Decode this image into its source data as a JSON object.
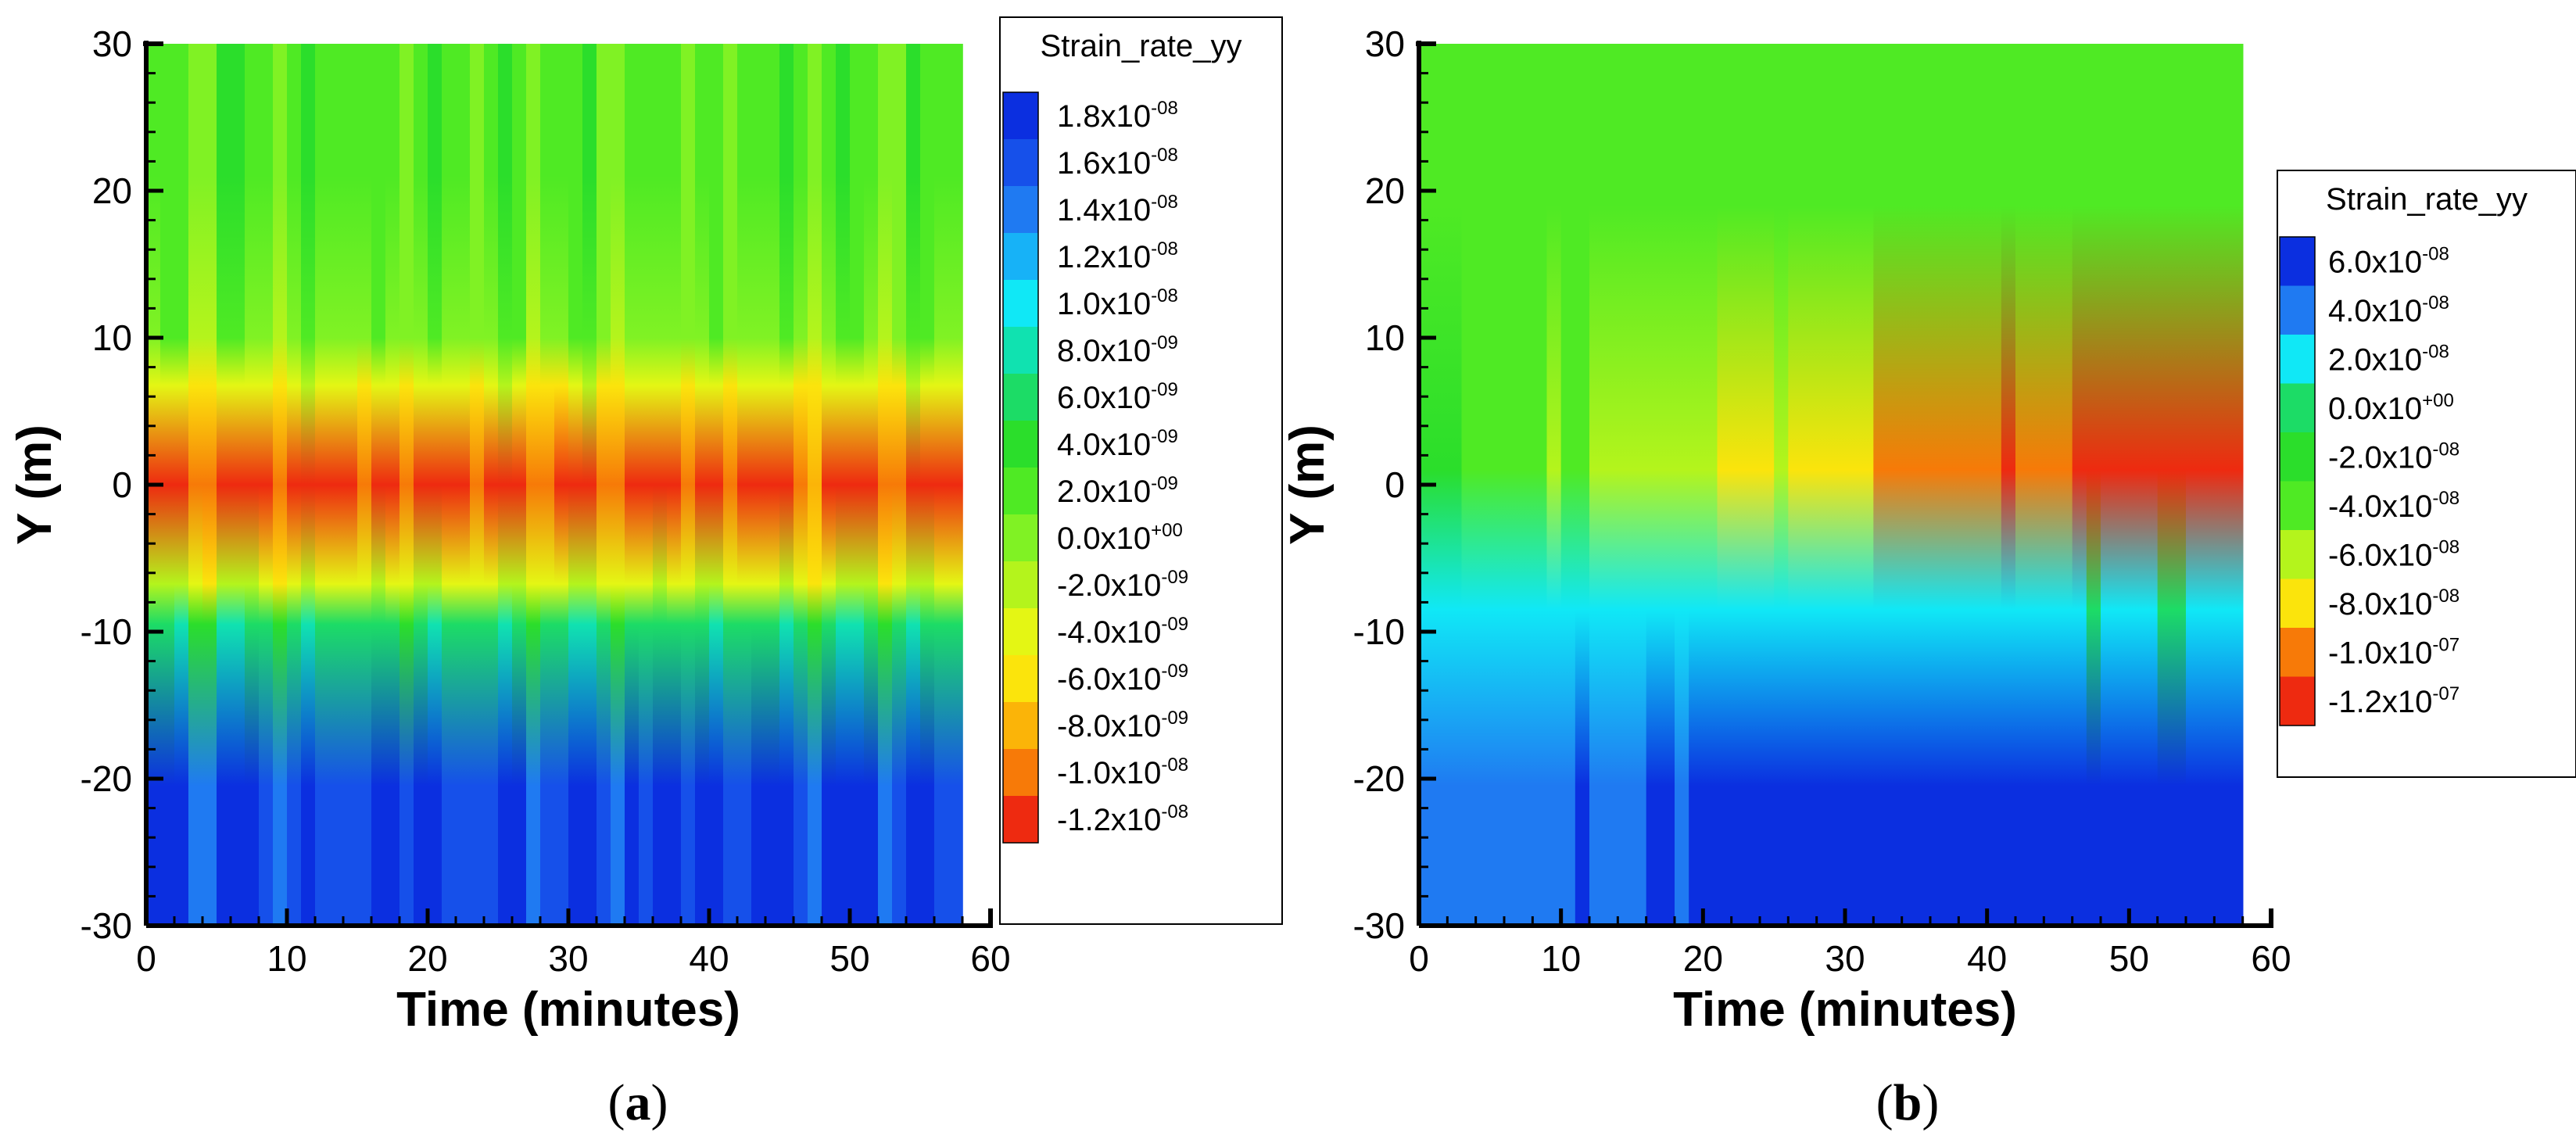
{
  "chart_data": [
    {
      "type": "heatmap",
      "panel_label": "a",
      "title": "",
      "xlabel": "Time (minutes)",
      "ylabel": "Y (m)",
      "xlim": [
        0,
        60
      ],
      "ylim": [
        -30,
        30
      ],
      "data_xmax": 58,
      "x_ticks": [
        "0",
        "10",
        "20",
        "30",
        "40",
        "50",
        "60"
      ],
      "y_ticks": [
        "30",
        "20",
        "10",
        "0",
        "-10",
        "-20",
        "-30"
      ],
      "colorbar_title": "Strain_rate_yy",
      "colorbar_levels": [
        {
          "mantissa": "1.8",
          "exp": "-08",
          "color": "#0b2fe0"
        },
        {
          "mantissa": "1.6",
          "exp": "-08",
          "color": "#1650ea"
        },
        {
          "mantissa": "1.4",
          "exp": "-08",
          "color": "#1f7af2"
        },
        {
          "mantissa": "1.2",
          "exp": "-08",
          "color": "#17b2f7"
        },
        {
          "mantissa": "1.0",
          "exp": "-08",
          "color": "#10e8f6"
        },
        {
          "mantissa": "8.0",
          "exp": "-09",
          "color": "#10e2b0"
        },
        {
          "mantissa": "6.0",
          "exp": "-09",
          "color": "#1cdc66"
        },
        {
          "mantissa": "4.0",
          "exp": "-09",
          "color": "#2bde2b"
        },
        {
          "mantissa": "2.0",
          "exp": "-09",
          "color": "#4fea24"
        },
        {
          "mantissa": "0.0",
          "exp": "+00",
          "color": "#80f224"
        },
        {
          "mantissa": "-2.0",
          "exp": "-09",
          "color": "#b4f41c"
        },
        {
          "mantissa": "-4.0",
          "exp": "-09",
          "color": "#e4f614"
        },
        {
          "mantissa": "-6.0",
          "exp": "-09",
          "color": "#fbe40c"
        },
        {
          "mantissa": "-8.0",
          "exp": "-09",
          "color": "#fbb408"
        },
        {
          "mantissa": "-1.0",
          "exp": "-08",
          "color": "#f77a08"
        },
        {
          "mantissa": "-1.2",
          "exp": "-08",
          "color": "#ee2a10"
        }
      ],
      "field_bands": [
        {
          "y_from": 30,
          "y_to": 12,
          "value": 2.0
        },
        {
          "y_from": 12,
          "y_to": 8,
          "value": 0.5
        },
        {
          "y_from": 8,
          "y_to": 5.5,
          "value": -4.0
        },
        {
          "y_from": 5.5,
          "y_to": -5.5,
          "value": -11.0
        },
        {
          "y_from": -5.5,
          "y_to": -8,
          "value": -3.0
        },
        {
          "y_from": -8,
          "y_to": -11,
          "value": 6.0
        },
        {
          "y_from": -11,
          "y_to": -30,
          "value": 16.0
        }
      ]
    },
    {
      "type": "heatmap",
      "panel_label": "b",
      "title": "",
      "xlabel": "Time (minutes)",
      "ylabel": "Y (m)",
      "xlim": [
        0,
        60
      ],
      "ylim": [
        -30,
        30
      ],
      "data_xmax": 58,
      "x_ticks": [
        "0",
        "10",
        "20",
        "30",
        "40",
        "50",
        "60"
      ],
      "y_ticks": [
        "30",
        "20",
        "10",
        "0",
        "-10",
        "-20",
        "-30"
      ],
      "colorbar_title": "Strain_rate_yy",
      "colorbar_levels": [
        {
          "mantissa": "6.0",
          "exp": "-08",
          "color": "#0b2fe0"
        },
        {
          "mantissa": "4.0",
          "exp": "-08",
          "color": "#1f7af2"
        },
        {
          "mantissa": "2.0",
          "exp": "-08",
          "color": "#10e8f6"
        },
        {
          "mantissa": "0.0",
          "exp": "+00",
          "color": "#1cdc66"
        },
        {
          "mantissa": "-2.0",
          "exp": "-08",
          "color": "#2bde2b"
        },
        {
          "mantissa": "-4.0",
          "exp": "-08",
          "color": "#4fea24"
        },
        {
          "mantissa": "-6.0",
          "exp": "-08",
          "color": "#b4f41c"
        },
        {
          "mantissa": "-8.0",
          "exp": "-08",
          "color": "#fbe40c"
        },
        {
          "mantissa": "-1.0",
          "exp": "-07",
          "color": "#f77a08"
        },
        {
          "mantissa": "-1.2",
          "exp": "-07",
          "color": "#ee2a10"
        }
      ],
      "field_bands": [
        {
          "y_from": 30,
          "y_to": 8,
          "value": -3.5
        },
        {
          "y_from": 8,
          "y_to": -6,
          "value": -9.0
        },
        {
          "y_from": -6,
          "y_to": -11,
          "value": 1.5
        },
        {
          "y_from": -11,
          "y_to": -30,
          "value": 5.5
        }
      ]
    }
  ]
}
